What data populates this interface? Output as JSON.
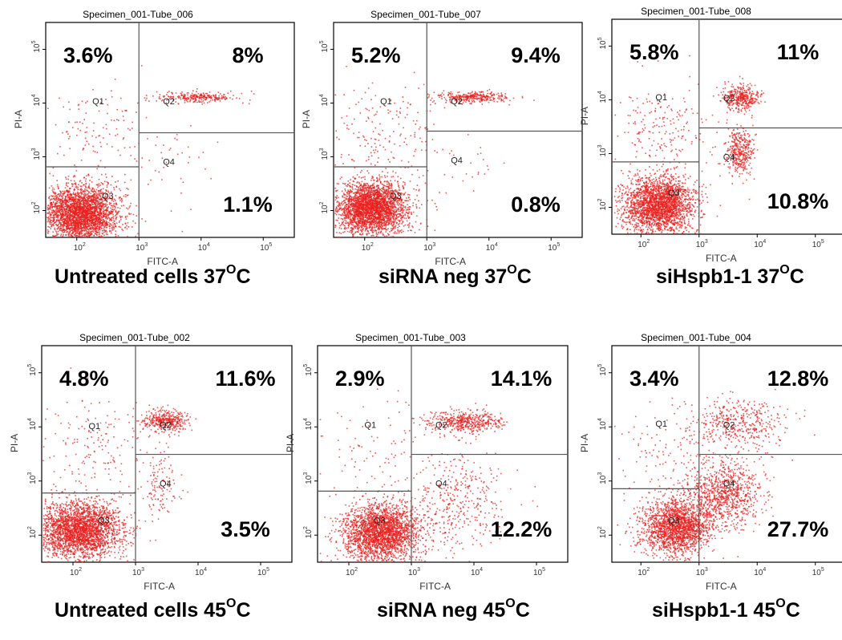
{
  "colors": {
    "events": "#e8201e",
    "axes": "#000000",
    "gate": "#555555",
    "text": "#000000"
  },
  "axis_labels": {
    "x": "FITC-A",
    "y": "PI-A"
  },
  "tick_labels": {
    "x": [
      {
        "base": "10",
        "exp": "2"
      },
      {
        "base": "10",
        "exp": "3"
      },
      {
        "base": "10",
        "exp": "4"
      },
      {
        "base": "10",
        "exp": "5"
      }
    ],
    "y": [
      {
        "base": "10",
        "exp": "2"
      },
      {
        "base": "10",
        "exp": "3"
      },
      {
        "base": "10",
        "exp": "4"
      },
      {
        "base": "10",
        "exp": "5"
      }
    ]
  },
  "quadrant_labels": [
    "Q1",
    "Q2",
    "Q3",
    "Q4"
  ],
  "chart_data": [
    {
      "type": "scatter",
      "title": "Specimen_001-Tube_006",
      "caption": {
        "text": "Untreated cells 37",
        "sup": "O",
        "suffix": "C"
      },
      "xlabel": "FITC-A",
      "ylabel": "PI-A",
      "xscale": "log",
      "yscale": "log",
      "gate": {
        "x": 1000,
        "y_left": 650,
        "y_right": 2800
      },
      "quadrants": {
        "Q1": "3.6%",
        "Q2": "8%",
        "Q3": "",
        "Q4": "1.1%"
      },
      "populations": [
        {
          "label": "Q3",
          "lx": 2.05,
          "ly": 1.95,
          "sx": 0.3,
          "sy": 0.26,
          "fraction": 0.87
        },
        {
          "label": "Q2",
          "lx": 3.9,
          "ly": 4.12,
          "sx": 0.32,
          "sy": 0.05,
          "fraction": 0.08
        },
        {
          "label": "Q1",
          "lx": 2.3,
          "ly": 3.5,
          "sx": 0.5,
          "sy": 0.4,
          "fraction": 0.036
        },
        {
          "label": "Q4",
          "lx": 3.6,
          "ly": 2.8,
          "sx": 0.35,
          "sy": 0.35,
          "fraction": 0.011
        }
      ]
    },
    {
      "type": "scatter",
      "title": "Specimen_001-Tube_007",
      "caption": {
        "text": "siRNA neg 37",
        "sup": "O",
        "suffix": "C"
      },
      "xlabel": "FITC-A",
      "ylabel": "PI-A",
      "xscale": "log",
      "yscale": "log",
      "gate": {
        "x": 1000,
        "y_left": 650,
        "y_right": 3000
      },
      "quadrants": {
        "Q1": "5.2%",
        "Q2": "9.4%",
        "Q3": "",
        "Q4": "0.8%"
      },
      "populations": [
        {
          "label": "Q3",
          "lx": 2.1,
          "ly": 2.05,
          "sx": 0.28,
          "sy": 0.25,
          "fraction": 0.85
        },
        {
          "label": "Q2",
          "lx": 3.75,
          "ly": 4.12,
          "sx": 0.3,
          "sy": 0.05,
          "fraction": 0.094
        },
        {
          "label": "Q1",
          "lx": 2.3,
          "ly": 3.5,
          "sx": 0.5,
          "sy": 0.45,
          "fraction": 0.052
        },
        {
          "label": "Q4",
          "lx": 3.6,
          "ly": 2.8,
          "sx": 0.35,
          "sy": 0.35,
          "fraction": 0.008
        }
      ]
    },
    {
      "type": "scatter",
      "title": "Specimen_001-Tube_008",
      "caption": {
        "text": "siHspb1-1 37",
        "sup": "O",
        "suffix": "C"
      },
      "xlabel": "FITC-A",
      "ylabel": "PI-A",
      "xscale": "log",
      "yscale": "log",
      "gate": {
        "x": 1000,
        "y_left": 700,
        "y_right": 3000
      },
      "quadrants": {
        "Q1": "5.8%",
        "Q2": "11%",
        "Q3": "",
        "Q4": "10.8%"
      },
      "populations": [
        {
          "label": "Q3",
          "lx": 2.3,
          "ly": 2.05,
          "sx": 0.3,
          "sy": 0.27,
          "fraction": 0.72
        },
        {
          "label": "Q2",
          "lx": 3.7,
          "ly": 4.05,
          "sx": 0.15,
          "sy": 0.12,
          "fraction": 0.11
        },
        {
          "label": "Q1",
          "lx": 2.4,
          "ly": 3.5,
          "sx": 0.45,
          "sy": 0.4,
          "fraction": 0.058
        },
        {
          "label": "Q4",
          "lx": 3.7,
          "ly": 3.05,
          "sx": 0.12,
          "sy": 0.22,
          "fraction": 0.108
        }
      ]
    },
    {
      "type": "scatter",
      "title": "Specimen_001-Tube_002",
      "caption": {
        "text": "Untreated cells 45",
        "sup": "O",
        "suffix": "C"
      },
      "xlabel": "FITC-A",
      "ylabel": "PI-A",
      "xscale": "log",
      "yscale": "log",
      "gate": {
        "x": 1000,
        "y_left": 600,
        "y_right": 3100
      },
      "quadrants": {
        "Q1": "4.8%",
        "Q2": "11.6%",
        "Q3": "",
        "Q4": "3.5%"
      },
      "populations": [
        {
          "label": "Q3",
          "lx": 2.1,
          "ly": 2.1,
          "sx": 0.35,
          "sy": 0.27,
          "fraction": 0.8
        },
        {
          "label": "Q2",
          "lx": 3.45,
          "ly": 4.12,
          "sx": 0.18,
          "sy": 0.1,
          "fraction": 0.116
        },
        {
          "label": "Q1",
          "lx": 2.3,
          "ly": 3.6,
          "sx": 0.45,
          "sy": 0.45,
          "fraction": 0.048
        },
        {
          "label": "Q4",
          "lx": 3.4,
          "ly": 2.95,
          "sx": 0.15,
          "sy": 0.3,
          "fraction": 0.035
        }
      ]
    },
    {
      "type": "scatter",
      "title": "Specimen_001-Tube_003",
      "caption": {
        "text": "siRNA neg 45",
        "sup": "O",
        "suffix": "C"
      },
      "xlabel": "FITC-A",
      "ylabel": "PI-A",
      "xscale": "log",
      "yscale": "log",
      "gate": {
        "x": 1000,
        "y_left": 650,
        "y_right": 3100
      },
      "quadrants": {
        "Q1": "2.9%",
        "Q2": "14.1%",
        "Q3": "",
        "Q4": "12.2%"
      },
      "populations": [
        {
          "label": "Q3",
          "lx": 2.5,
          "ly": 2.05,
          "sx": 0.3,
          "sy": 0.27,
          "fraction": 0.71
        },
        {
          "label": "Q2",
          "lx": 3.85,
          "ly": 4.1,
          "sx": 0.3,
          "sy": 0.1,
          "fraction": 0.141
        },
        {
          "label": "Q1",
          "lx": 2.4,
          "ly": 3.6,
          "sx": 0.5,
          "sy": 0.45,
          "fraction": 0.029
        },
        {
          "label": "Q4",
          "lx": 3.7,
          "ly": 2.6,
          "sx": 0.4,
          "sy": 0.45,
          "fraction": 0.122
        }
      ]
    },
    {
      "type": "scatter",
      "title": "Specimen_001-Tube_004",
      "caption": {
        "text": "siHspb1-1 45",
        "sup": "O",
        "suffix": "C"
      },
      "xlabel": "FITC-A",
      "ylabel": "PI-A",
      "xscale": "log",
      "yscale": "log",
      "gate": {
        "x": 1000,
        "y_left": 720,
        "y_right": 3100
      },
      "quadrants": {
        "Q1": "3.4%",
        "Q2": "12.8%",
        "Q3": "",
        "Q4": "27.7%"
      },
      "populations": [
        {
          "label": "Q3",
          "lx": 2.6,
          "ly": 2.15,
          "sx": 0.3,
          "sy": 0.25,
          "fraction": 0.55
        },
        {
          "label": "Q2",
          "lx": 3.7,
          "ly": 4.05,
          "sx": 0.4,
          "sy": 0.25,
          "fraction": 0.128
        },
        {
          "label": "Q1",
          "lx": 2.5,
          "ly": 3.6,
          "sx": 0.5,
          "sy": 0.45,
          "fraction": 0.034
        },
        {
          "label": "Q4",
          "lx": 3.4,
          "ly": 2.75,
          "sx": 0.35,
          "sy": 0.3,
          "fraction": 0.277
        }
      ]
    }
  ]
}
